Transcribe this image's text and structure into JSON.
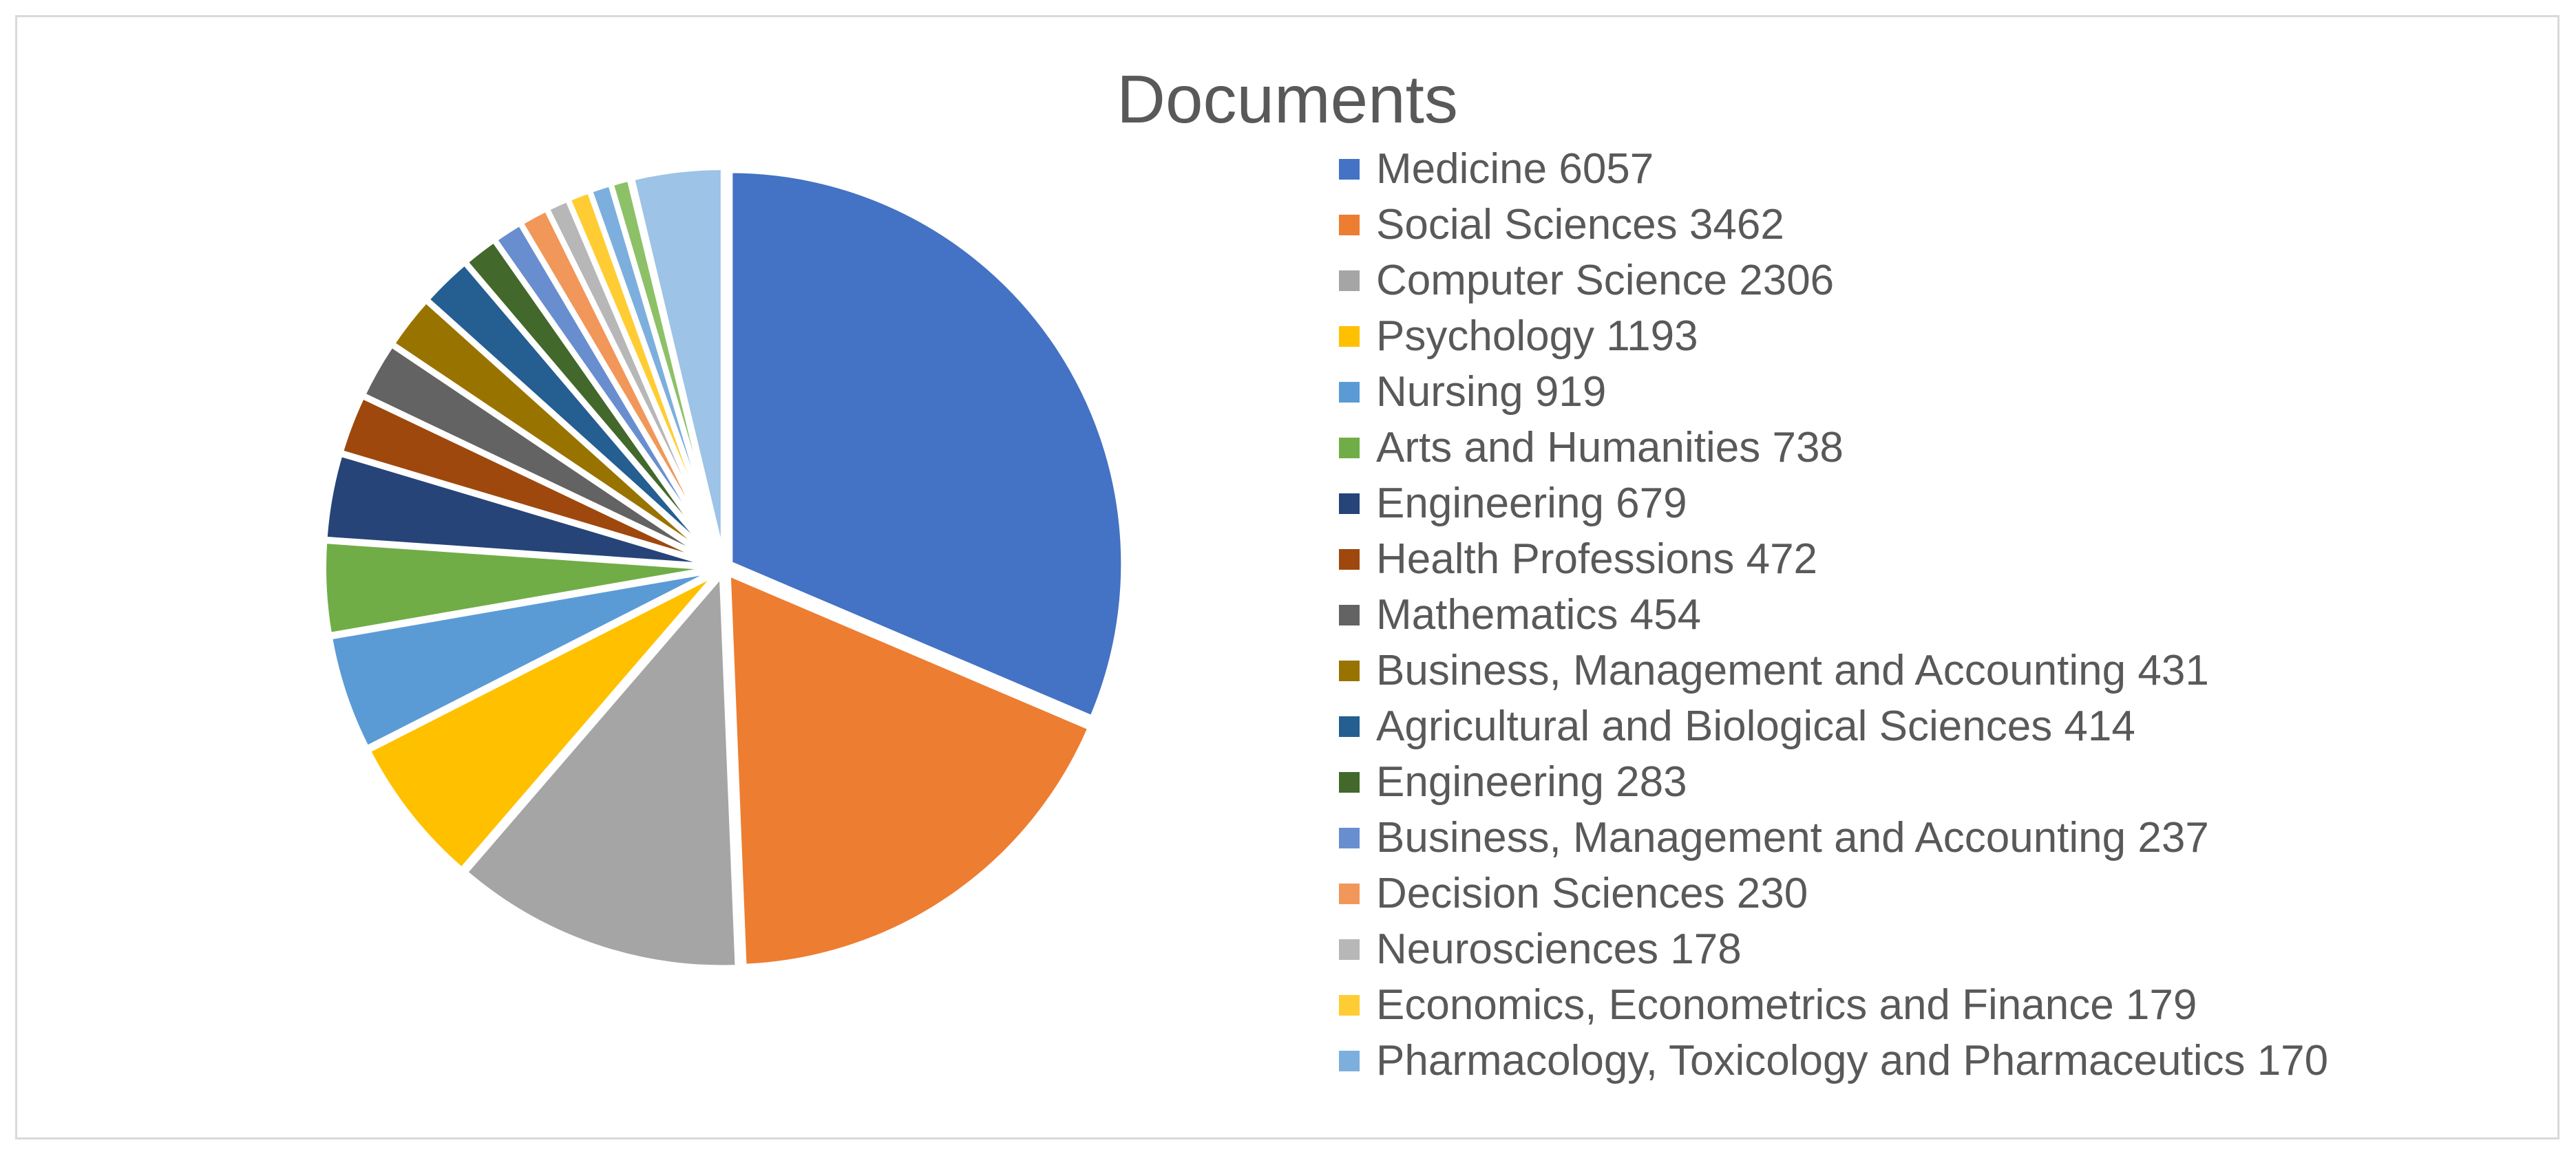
{
  "chart_data": {
    "type": "pie",
    "title": "Documents",
    "legend_position": "right",
    "slices": [
      {
        "label": "Medicine 6057",
        "value": 6057,
        "color": "#4472C4"
      },
      {
        "label": "Social Sciences 3462",
        "value": 3462,
        "color": "#ED7D31"
      },
      {
        "label": "Computer Science 2306",
        "value": 2306,
        "color": "#A5A5A5"
      },
      {
        "label": "Psychology 1193",
        "value": 1193,
        "color": "#FFC000"
      },
      {
        "label": "Nursing 919",
        "value": 919,
        "color": "#5B9BD5"
      },
      {
        "label": "Arts and Humanities 738",
        "value": 738,
        "color": "#70AD47"
      },
      {
        "label": "Engineering 679",
        "value": 679,
        "color": "#264478"
      },
      {
        "label": "Health Professions 472",
        "value": 472,
        "color": "#9E480E"
      },
      {
        "label": "Mathematics 454",
        "value": 454,
        "color": "#636363"
      },
      {
        "label": "Business, Management and Accounting 431",
        "value": 431,
        "color": "#997300"
      },
      {
        "label": "Agricultural and Biological Sciences 414",
        "value": 414,
        "color": "#255E91"
      },
      {
        "label": "Engineering 283",
        "value": 283,
        "color": "#43682B"
      },
      {
        "label": "Business, Management and Accounting 237",
        "value": 237,
        "color": "#698ED0"
      },
      {
        "label": "Decision Sciences 230",
        "value": 230,
        "color": "#F1975A"
      },
      {
        "label": "Neurosciences 178",
        "value": 178,
        "color": "#B7B7B7"
      },
      {
        "label": "Economics, Econometrics and Finance 179",
        "value": 179,
        "color": "#FFCD33"
      },
      {
        "label": "Pharmacology, Toxicology and Pharmaceutics 170",
        "value": 170,
        "color": "#7CAFDD"
      }
    ],
    "unlabeled_slices": [
      {
        "value": 150,
        "color": "#8CC168"
      },
      {
        "value": 12,
        "color": "#ffffff"
      },
      {
        "value": 720,
        "color": "#9DC3E6"
      }
    ]
  }
}
